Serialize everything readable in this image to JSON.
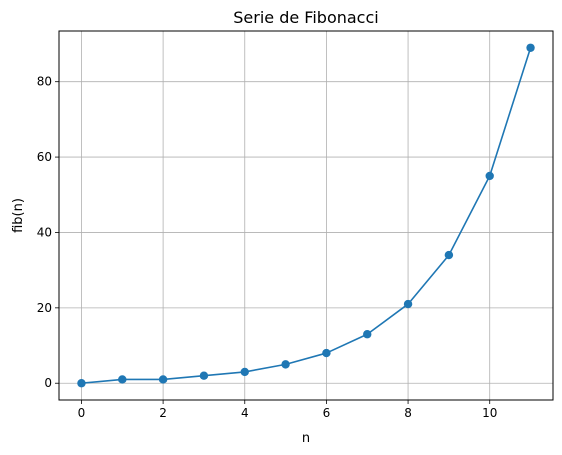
{
  "chart_data": {
    "type": "line",
    "title": "Serie de Fibonacci",
    "xlabel": "n",
    "ylabel": "fib(n)",
    "x": [
      0,
      1,
      2,
      3,
      4,
      5,
      6,
      7,
      8,
      9,
      10,
      11
    ],
    "series": [
      {
        "values": [
          0,
          1,
          1,
          2,
          3,
          5,
          8,
          13,
          21,
          34,
          55,
          89
        ]
      }
    ],
    "xlim": [
      -0.55,
      11.55
    ],
    "ylim": [
      -4.45,
      93.45
    ],
    "xticks": [
      0,
      2,
      4,
      6,
      8,
      10
    ],
    "yticks": [
      0,
      20,
      40,
      60,
      80
    ],
    "grid": true,
    "marker": "circle",
    "colors": {
      "line": "#1f77b4",
      "grid": "#b0b0b0",
      "axes": "#000000"
    }
  }
}
